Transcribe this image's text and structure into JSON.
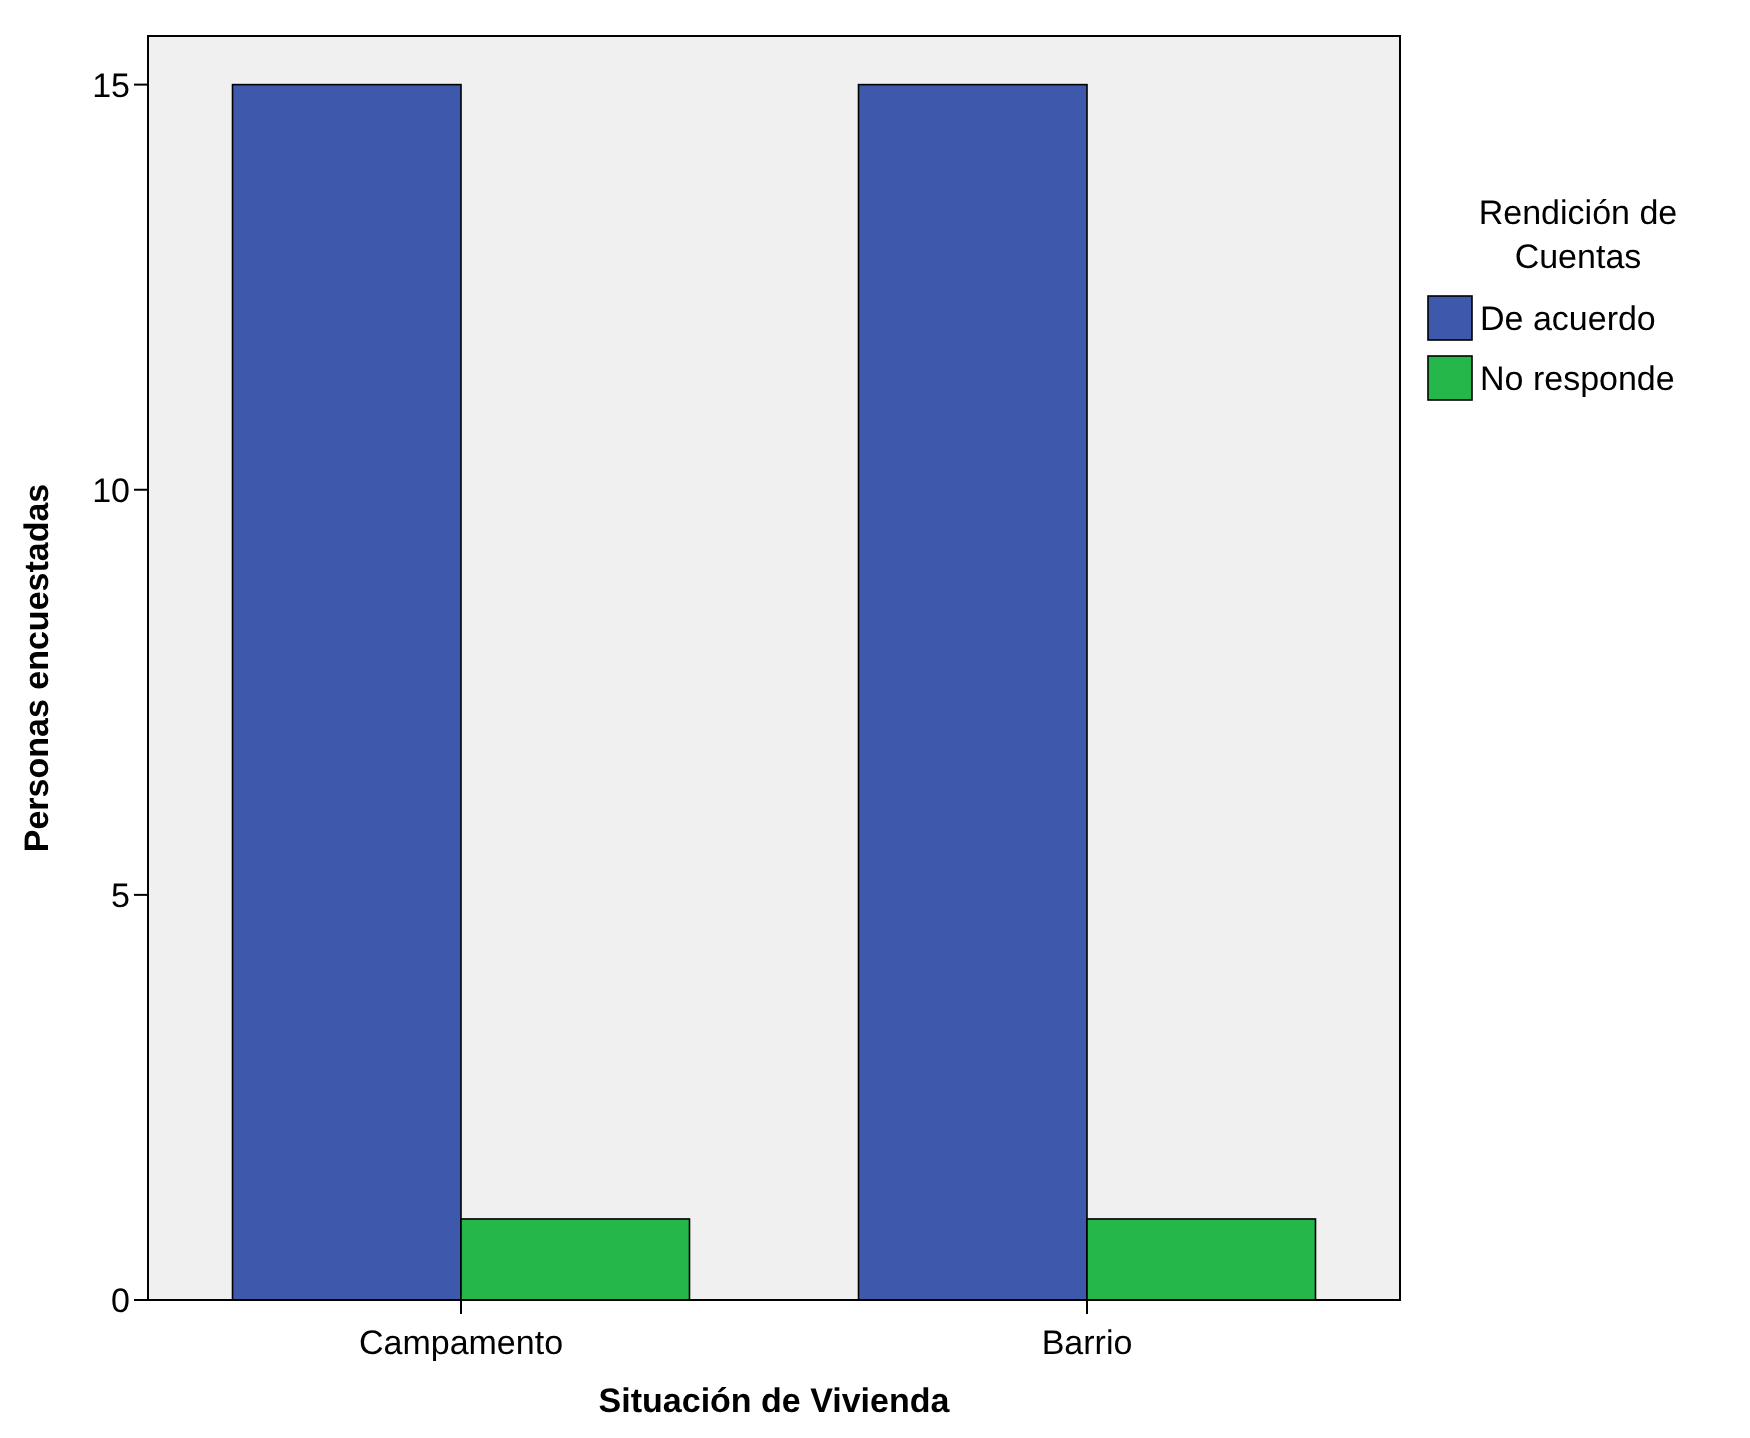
{
  "chart_data": {
    "type": "bar",
    "xlabel": "Situación de Vivienda",
    "ylabel": "Personas encuestadas",
    "legend_title": "Rendición de Cuentas",
    "categories": [
      "Campamento",
      "Barrio"
    ],
    "series": [
      {
        "name": "De acuerdo",
        "color": "#3e58ac",
        "values": [
          15,
          15
        ]
      },
      {
        "name": "No responde",
        "color": "#25b74a",
        "values": [
          1,
          1
        ]
      }
    ],
    "ylim": [
      0,
      15.6
    ],
    "yticks": [
      0,
      5,
      10,
      15
    ],
    "grid": false,
    "legend": "right"
  }
}
